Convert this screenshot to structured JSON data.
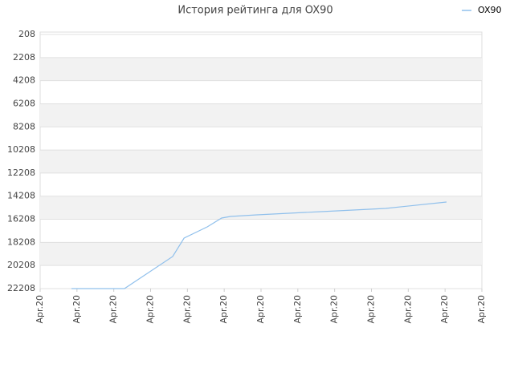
{
  "chart_data": {
    "type": "line",
    "title": "История рейтинга для OX90",
    "x": [
      0.85,
      2.29,
      3.6,
      3.91,
      4.54,
      4.93,
      5.17,
      5.89,
      7.64,
      9.38,
      11.04
    ],
    "series": [
      {
        "name": "OX90",
        "color": "#90c0ec",
        "values": [
          22208,
          22208,
          19432,
          17836,
          16864,
          16101,
          15962,
          15823,
          15546,
          15268,
          14713
        ]
      }
    ],
    "xlim": [
      0,
      12
    ],
    "xticks": [
      {
        "value": 0,
        "label": "Apr.20"
      },
      {
        "value": 1,
        "label": "Apr.20"
      },
      {
        "value": 2,
        "label": "Apr.20"
      },
      {
        "value": 3,
        "label": "Apr.20"
      },
      {
        "value": 4,
        "label": "Apr.20"
      },
      {
        "value": 5,
        "label": "Apr.20"
      },
      {
        "value": 6,
        "label": "Apr.20"
      },
      {
        "value": 7,
        "label": "Apr.20"
      },
      {
        "value": 8,
        "label": "Apr.20"
      },
      {
        "value": 9,
        "label": "Apr.20"
      },
      {
        "value": 10,
        "label": "Apr.20"
      },
      {
        "value": 11,
        "label": "Apr.20"
      },
      {
        "value": 12,
        "label": "Apr.20"
      }
    ],
    "ylim": [
      22208,
      208
    ],
    "y_reversed": true,
    "yticks": [
      208,
      2208,
      4208,
      6208,
      8208,
      10208,
      12208,
      14208,
      16208,
      18208,
      20208,
      22208
    ],
    "grid": true,
    "legend": "top-right"
  }
}
